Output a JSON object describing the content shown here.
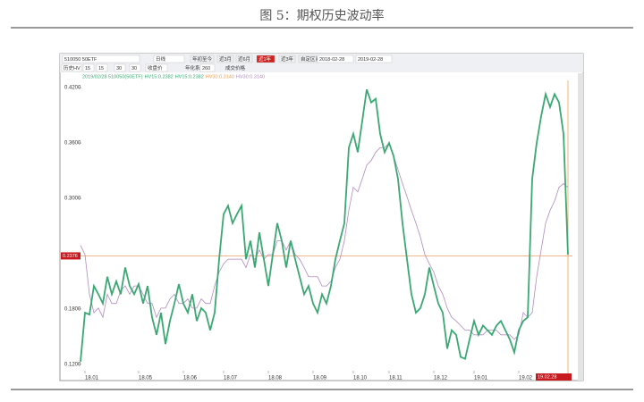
{
  "title": "图 5：期权历史波动率",
  "toolbar": {
    "row1": [
      "510050 50ETF",
      "日线",
      "年初至今",
      "近3月",
      "近6月",
      "近1年",
      "近3年",
      "自定区间",
      "2018-02-28",
      "2019-02-28"
    ],
    "row2": [
      "历史HV",
      "15",
      "15",
      "30",
      "30",
      "收盘价",
      "年化系数",
      "260",
      "成交价格"
    ]
  },
  "chart_data": {
    "type": "line",
    "info_line": [
      "2019/02/28 510050(50ETF)",
      "HV15:0.2382",
      "HV15:0.2382",
      "HV30:0.3140",
      "HV30:0.3140"
    ],
    "info_colors": [
      "#3aa872",
      "#3aa872",
      "#3aa872",
      "#f0a050",
      "#b08ac0"
    ],
    "categories": [
      null,
      "18.01",
      null,
      null,
      null,
      null,
      null,
      null,
      null,
      null,
      null,
      null,
      null,
      "18.05",
      null,
      null,
      null,
      null,
      null,
      null,
      null,
      null,
      null,
      "18.06",
      null,
      null,
      null,
      null,
      null,
      null,
      null,
      null,
      "18.07",
      null,
      null,
      null,
      null,
      null,
      null,
      null,
      null,
      null,
      "18.08",
      null,
      null,
      null,
      null,
      null,
      null,
      null,
      null,
      null,
      "18.09",
      null,
      null,
      null,
      null,
      null,
      null,
      null,
      null,
      "18.10",
      null,
      null,
      null,
      null,
      null,
      null,
      null,
      "18.11",
      null,
      null,
      null,
      null,
      null,
      null,
      null,
      null,
      null,
      "18.12",
      null,
      null,
      null,
      null,
      null,
      null,
      null,
      null,
      "19.01",
      null,
      null,
      null,
      null,
      null,
      null,
      null,
      null,
      null,
      "19.02",
      null,
      null,
      null,
      null,
      null,
      null,
      null,
      null,
      null,
      null,
      null
    ],
    "series": [
      {
        "color": "#b08ac0",
        "values": [
          0.249,
          0.239,
          0.196,
          0.176,
          0.181,
          0.171,
          0.196,
          0.186,
          0.186,
          0.2,
          0.205,
          0.196,
          0.205,
          0.205,
          0.196,
          0.186,
          0.186,
          0.171,
          0.181,
          0.181,
          0.191,
          0.196,
          0.186,
          0.186,
          0.191,
          0.181,
          0.181,
          0.191,
          0.186,
          0.186,
          0.205,
          0.22,
          0.229,
          0.234,
          0.234,
          0.234,
          0.234,
          0.225,
          0.239,
          0.234,
          0.244,
          0.234,
          0.239,
          0.239,
          0.254,
          0.254,
          0.244,
          0.254,
          0.239,
          0.234,
          0.225,
          0.215,
          0.215,
          0.215,
          0.205,
          0.205,
          0.21,
          0.225,
          0.234,
          0.254,
          0.287,
          0.312,
          0.307,
          0.321,
          0.336,
          0.341,
          0.35,
          0.355,
          0.355,
          0.36,
          0.346,
          0.331,
          0.316,
          0.302,
          0.287,
          0.273,
          0.258,
          0.239,
          0.229,
          0.22,
          0.205,
          0.196,
          0.181,
          0.171,
          0.167,
          0.162,
          0.157,
          0.157,
          0.152,
          0.152,
          0.152,
          0.157,
          0.157,
          0.157,
          0.152,
          0.152,
          0.152,
          0.147,
          0.152,
          0.176,
          0.171,
          0.176,
          0.215,
          0.244,
          0.273,
          0.287,
          0.297,
          0.312,
          0.316,
          0.312
        ]
      },
      {
        "color": "#3aa872",
        "values": [
          0.123,
          0.176,
          0.174,
          0.205,
          0.196,
          0.186,
          0.215,
          0.196,
          0.21,
          0.196,
          0.225,
          0.205,
          0.196,
          0.207,
          0.186,
          0.205,
          0.171,
          0.152,
          0.176,
          0.142,
          0.167,
          0.186,
          0.207,
          0.186,
          0.176,
          0.196,
          0.167,
          0.181,
          0.176,
          0.157,
          0.176,
          0.234,
          0.283,
          0.292,
          0.273,
          0.283,
          0.292,
          0.234,
          0.254,
          0.225,
          0.263,
          0.234,
          0.205,
          0.239,
          0.273,
          0.254,
          0.225,
          0.254,
          0.234,
          0.215,
          0.196,
          0.205,
          0.186,
          0.176,
          0.196,
          0.186,
          0.205,
          0.234,
          0.254,
          0.273,
          0.355,
          0.37,
          0.35,
          0.384,
          0.418,
          0.404,
          0.408,
          0.37,
          0.35,
          0.36,
          0.346,
          0.321,
          0.273,
          0.234,
          0.196,
          0.176,
          0.181,
          0.196,
          0.225,
          0.205,
          0.186,
          0.176,
          0.137,
          0.157,
          0.152,
          0.128,
          0.126,
          0.147,
          0.167,
          0.152,
          0.162,
          0.157,
          0.152,
          0.162,
          0.167,
          0.157,
          0.147,
          0.133,
          0.157,
          0.167,
          0.171,
          0.321,
          0.36,
          0.389,
          0.413,
          0.399,
          0.413,
          0.404,
          0.37,
          0.239
        ]
      }
    ],
    "ylim": [
      0.115,
      0.425
    ],
    "yticks": [
      {
        "value": 0.12,
        "label": "0.1200"
      },
      {
        "value": 0.18,
        "label": "0.1800"
      },
      {
        "value": 0.3,
        "label": "0.3000"
      },
      {
        "value": 0.36,
        "label": "0.3600"
      },
      {
        "value": 0.42,
        "label": "0.4200"
      }
    ],
    "current_value": {
      "value": 0.2376,
      "label": "0.2376"
    },
    "cursor_label": "19.02.28"
  }
}
